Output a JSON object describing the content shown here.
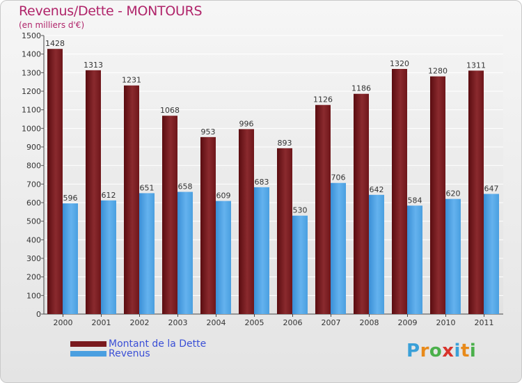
{
  "header": {
    "title": "Revenus/Dette - MONTOURS",
    "subtitle": "(en milliers d'€)"
  },
  "legend": {
    "items": [
      {
        "label": "Montant de la Dette",
        "color": "#7a1a1e"
      },
      {
        "label": "Revenus",
        "color": "#4a9fe0"
      }
    ]
  },
  "logo": {
    "text": "Proxiti",
    "letters": [
      "P",
      "r",
      "o",
      "x",
      "i",
      "t",
      "i"
    ],
    "colors": [
      "#3aa0d8",
      "#e88a1a",
      "#4bb04b",
      "#d8342c",
      "#3aa0d8",
      "#e88a1a",
      "#4bb04b"
    ]
  },
  "chart_data": {
    "type": "bar",
    "categories": [
      "2000",
      "2001",
      "2002",
      "2003",
      "2004",
      "2005",
      "2006",
      "2007",
      "2008",
      "2009",
      "2010",
      "2011"
    ],
    "series": [
      {
        "name": "Montant de la Dette",
        "color": "#7a1a1e",
        "values": [
          1428,
          1313,
          1231,
          1068,
          953,
          996,
          893,
          1126,
          1186,
          1320,
          1280,
          1311
        ]
      },
      {
        "name": "Revenus",
        "color": "#4a9fe0",
        "values": [
          596,
          612,
          651,
          658,
          609,
          683,
          530,
          706,
          642,
          584,
          620,
          647
        ]
      }
    ],
    "yticks": [
      0,
      100,
      200,
      300,
      400,
      500,
      600,
      700,
      800,
      900,
      1000,
      1100,
      1200,
      1300,
      1400,
      1500
    ],
    "ylim": [
      0,
      1500
    ],
    "grid": true,
    "legend_position": "bottom-left"
  }
}
